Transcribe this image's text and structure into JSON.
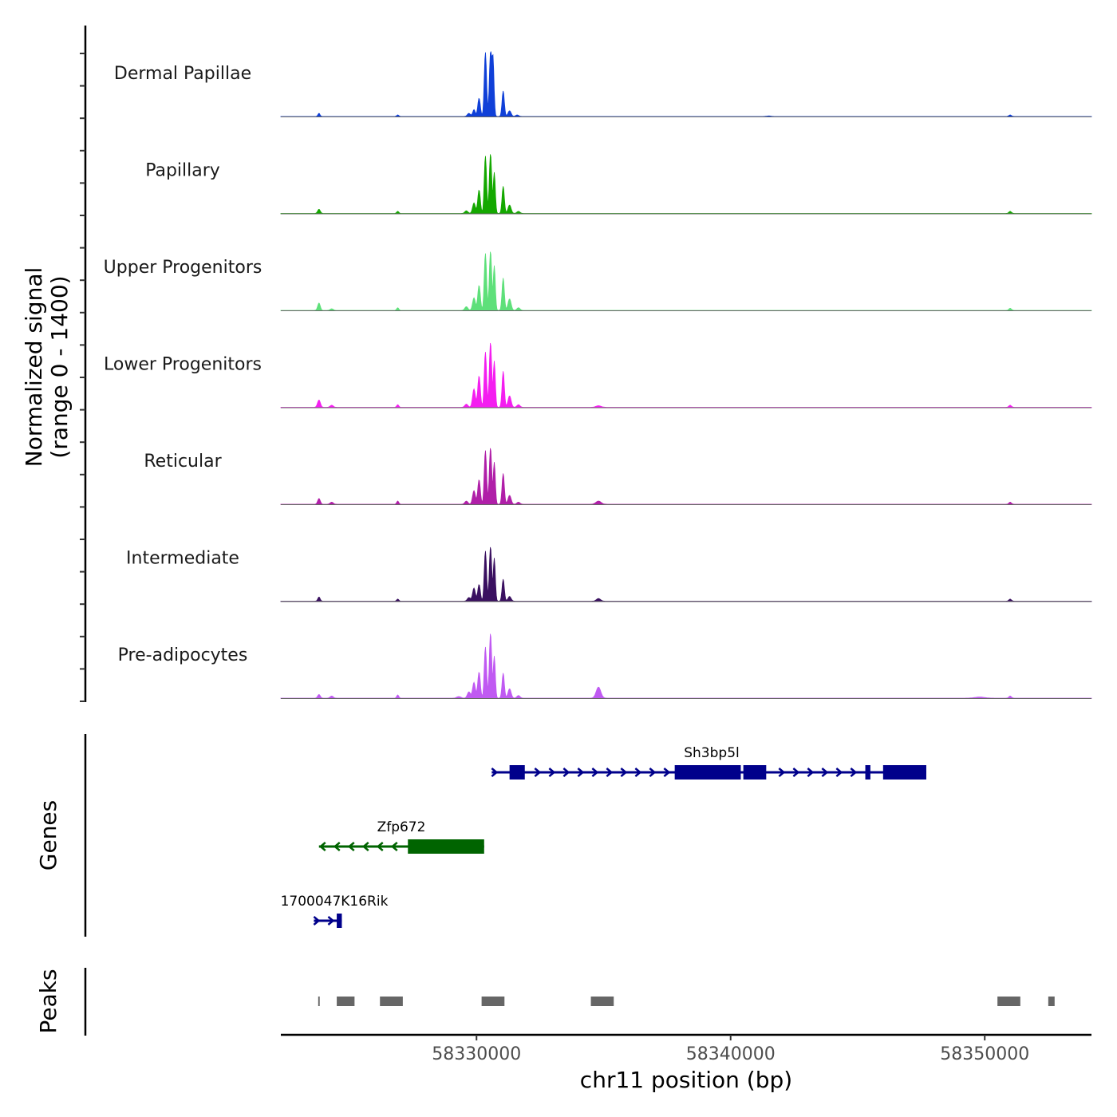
{
  "chart_data": {
    "type": "area",
    "title": "",
    "xlabel": "chr11 position (bp)",
    "ylabel": "Normalized signal\n(range 0 - 1400)",
    "xlim": [
      58322300,
      58354200
    ],
    "ylim": [
      0,
      1400
    ],
    "x_ticks": [
      {
        "value": 58330000,
        "label": "58330000"
      },
      {
        "value": 58340000,
        "label": "58340000"
      },
      {
        "value": 58350000,
        "label": "58350000"
      }
    ],
    "signal_baseline_value": 8,
    "series": [
      {
        "name": "Dermal Papillae",
        "color": "#1040d8",
        "peaks": [
          [
            58323800,
            60,
            40
          ],
          [
            58326900,
            30,
            40
          ],
          [
            58329700,
            60,
            60
          ],
          [
            58329900,
            130,
            50
          ],
          [
            58330100,
            350,
            50
          ],
          [
            58330350,
            1230,
            45
          ],
          [
            58330550,
            1200,
            45
          ],
          [
            58330650,
            1060,
            40
          ],
          [
            58331050,
            490,
            45
          ],
          [
            58331300,
            110,
            60
          ],
          [
            58331600,
            30,
            60
          ],
          [
            58341500,
            10,
            80
          ],
          [
            58351000,
            30,
            50
          ]
        ]
      },
      {
        "name": "Papillary",
        "color": "#14a800",
        "peaks": [
          [
            58323800,
            80,
            50
          ],
          [
            58326900,
            40,
            40
          ],
          [
            58329600,
            50,
            60
          ],
          [
            58329900,
            200,
            55
          ],
          [
            58330100,
            450,
            50
          ],
          [
            58330350,
            1100,
            45
          ],
          [
            58330550,
            1150,
            45
          ],
          [
            58330700,
            780,
            40
          ],
          [
            58331050,
            520,
            45
          ],
          [
            58331300,
            160,
            60
          ],
          [
            58331650,
            40,
            60
          ],
          [
            58351000,
            40,
            50
          ]
        ]
      },
      {
        "name": "Upper Progenitors",
        "color": "#5ee07a",
        "peaks": [
          [
            58323800,
            140,
            50
          ],
          [
            58324300,
            30,
            60
          ],
          [
            58326900,
            50,
            40
          ],
          [
            58329600,
            70,
            60
          ],
          [
            58329900,
            240,
            55
          ],
          [
            58330100,
            480,
            50
          ],
          [
            58330350,
            1090,
            45
          ],
          [
            58330550,
            1140,
            45
          ],
          [
            58330700,
            850,
            40
          ],
          [
            58331050,
            620,
            45
          ],
          [
            58331300,
            220,
            60
          ],
          [
            58331650,
            50,
            60
          ],
          [
            58351000,
            40,
            50
          ]
        ]
      },
      {
        "name": "Lower Progenitors",
        "color": "#f41ef0",
        "peaks": [
          [
            58323800,
            140,
            55
          ],
          [
            58324300,
            40,
            60
          ],
          [
            58326900,
            50,
            40
          ],
          [
            58329600,
            60,
            60
          ],
          [
            58329900,
            350,
            55
          ],
          [
            58330100,
            600,
            50
          ],
          [
            58330350,
            1060,
            45
          ],
          [
            58330550,
            1250,
            45
          ],
          [
            58330700,
            880,
            40
          ],
          [
            58331050,
            690,
            45
          ],
          [
            58331300,
            220,
            60
          ],
          [
            58331650,
            50,
            60
          ],
          [
            58334800,
            30,
            100
          ],
          [
            58351000,
            40,
            50
          ]
        ]
      },
      {
        "name": "Reticular",
        "color": "#b01fa8",
        "peaks": [
          [
            58323800,
            110,
            50
          ],
          [
            58324300,
            40,
            60
          ],
          [
            58326900,
            60,
            40
          ],
          [
            58329600,
            60,
            60
          ],
          [
            58329900,
            260,
            55
          ],
          [
            58330100,
            470,
            50
          ],
          [
            58330350,
            1030,
            45
          ],
          [
            58330550,
            1090,
            45
          ],
          [
            58330700,
            800,
            40
          ],
          [
            58331050,
            590,
            45
          ],
          [
            58331300,
            170,
            60
          ],
          [
            58331650,
            40,
            60
          ],
          [
            58334800,
            60,
            100
          ],
          [
            58351000,
            40,
            50
          ]
        ]
      },
      {
        "name": "Intermediate",
        "color": "#3a1060",
        "peaks": [
          [
            58323800,
            80,
            45
          ],
          [
            58326900,
            40,
            40
          ],
          [
            58329700,
            70,
            60
          ],
          [
            58329900,
            250,
            55
          ],
          [
            58330100,
            320,
            50
          ],
          [
            58330350,
            960,
            45
          ],
          [
            58330550,
            1050,
            45
          ],
          [
            58330700,
            820,
            40
          ],
          [
            58331050,
            420,
            45
          ],
          [
            58331300,
            90,
            60
          ],
          [
            58334800,
            50,
            80
          ],
          [
            58351000,
            40,
            50
          ]
        ]
      },
      {
        "name": "Pre-adipocytes",
        "color": "#c05af2",
        "peaks": [
          [
            58323800,
            70,
            50
          ],
          [
            58324300,
            40,
            60
          ],
          [
            58326900,
            60,
            40
          ],
          [
            58329300,
            30,
            80
          ],
          [
            58329700,
            120,
            60
          ],
          [
            58329900,
            300,
            55
          ],
          [
            58330100,
            500,
            50
          ],
          [
            58330350,
            980,
            45
          ],
          [
            58330550,
            1250,
            45
          ],
          [
            58330700,
            800,
            40
          ],
          [
            58331050,
            480,
            45
          ],
          [
            58331300,
            180,
            60
          ],
          [
            58331650,
            50,
            60
          ],
          [
            58334800,
            210,
            90
          ],
          [
            58349800,
            20,
            200
          ],
          [
            58351000,
            40,
            50
          ]
        ]
      }
    ],
    "genes": [
      {
        "name": "Sh3bp5l",
        "strand": "+",
        "color": "#00008b",
        "start": 58330600,
        "end": 58347700,
        "exons": [
          [
            58331300,
            58331900
          ],
          [
            58337800,
            58340400
          ],
          [
            58340500,
            58341400
          ],
          [
            58345300,
            58345500
          ],
          [
            58346000,
            58347700
          ]
        ]
      },
      {
        "name": "Zfp672",
        "strand": "-",
        "color": "#006400",
        "start": 58323800,
        "end": 58330300,
        "exons": [
          [
            58327300,
            58330300
          ]
        ]
      },
      {
        "name": "1700047K16Rik",
        "strand": "+",
        "color": "#00008b",
        "start": 58323600,
        "end": 58324700,
        "exons": [
          [
            58324500,
            58324700
          ]
        ]
      }
    ],
    "peaks_track": [
      [
        58323770,
        58323830
      ],
      [
        58324500,
        58325200
      ],
      [
        58326200,
        58327100
      ],
      [
        58330200,
        58331100
      ],
      [
        58334500,
        58335400
      ],
      [
        58350500,
        58351400
      ],
      [
        58352500,
        58352750
      ]
    ],
    "panel_titles": {
      "genes": "Genes",
      "peaks": "Peaks"
    }
  }
}
